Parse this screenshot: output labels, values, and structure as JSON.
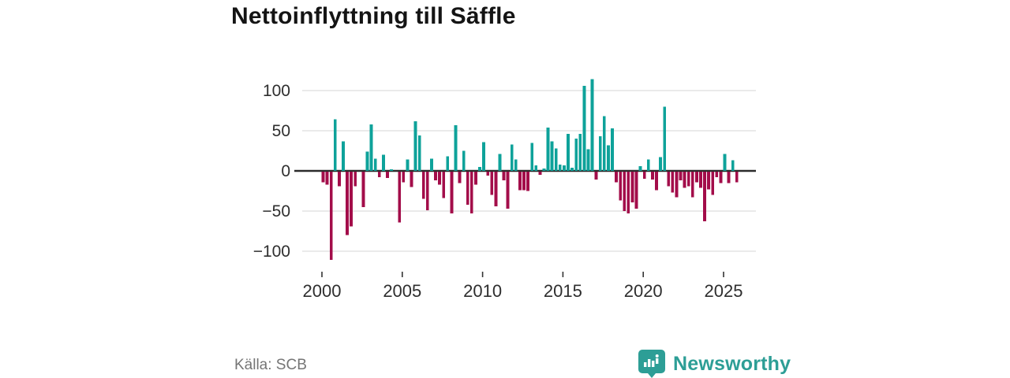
{
  "title": "Nettoinflyttning till Säffle",
  "source": "Källa: SCB",
  "logo": {
    "text": "Newsworthy",
    "color": "#2d9e96",
    "icon": "newsworthy-bubble-chart-icon"
  },
  "chart_data": {
    "type": "bar",
    "title": "Nettoinflyttning till Säffle",
    "ylabel": "",
    "xlabel": "",
    "unit": "net migration per quarter",
    "frequency": "quarterly",
    "start": "2000-Q1",
    "end": "2025-Q4",
    "grid": true,
    "legend": false,
    "ylim": [
      -122,
      126
    ],
    "y_ticks": [
      100,
      50,
      0,
      -50,
      -100
    ],
    "y_tick_labels": [
      "100",
      "50",
      "0",
      "−50",
      "−100"
    ],
    "x_tick_years": [
      2000,
      2005,
      2010,
      2015,
      2020,
      2025
    ],
    "x_tick_labels": [
      "2000",
      "2005",
      "2010",
      "2015",
      "2020",
      "2025"
    ],
    "colors": {
      "positive": "#0ea29a",
      "negative": "#a30d4a",
      "grid": "#e3e3e3",
      "zero_line": "#2b2b2b",
      "tick_text": "#2e2e2e"
    },
    "values": [
      -13,
      -16,
      -110,
      64,
      -18,
      37,
      -79,
      -68,
      -18,
      0,
      -44,
      24,
      58,
      15,
      -7,
      20,
      -8,
      2,
      0,
      -63,
      -13,
      14,
      -19,
      62,
      44,
      -34,
      -48,
      15,
      -11,
      -16,
      -33,
      18,
      -52,
      57,
      -14,
      25,
      -41,
      -52,
      -16,
      5,
      36,
      -5,
      -29,
      -43,
      21,
      -11,
      -46,
      33,
      14,
      -23,
      -23,
      -24,
      35,
      7,
      -4,
      3,
      54,
      37,
      28,
      8,
      7,
      46,
      4,
      40,
      46,
      106,
      27,
      114,
      -10,
      43,
      68,
      32,
      53,
      -13,
      -36,
      -49,
      -52,
      -38,
      -46,
      6,
      -9,
      14,
      -10,
      -23,
      17,
      80,
      -18,
      -26,
      -32,
      -11,
      -20,
      -18,
      -32,
      -13,
      -20,
      -62,
      -22,
      -29,
      -7,
      -14,
      21,
      -14,
      13,
      -13
    ]
  }
}
